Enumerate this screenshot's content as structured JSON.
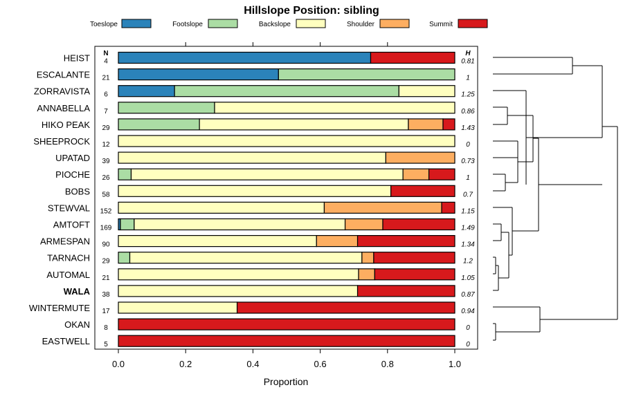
{
  "chart_data": {
    "type": "bar",
    "stacked": true,
    "orientation": "horizontal",
    "title": "Hillslope Position: sibling",
    "xlabel": "Proportion",
    "ylabel": "",
    "xlim": [
      0,
      1
    ],
    "xticks": [
      "0.0",
      "0.2",
      "0.4",
      "0.6",
      "0.8",
      "1.0"
    ],
    "n_header": "N",
    "h_header": "H",
    "legend": [
      {
        "name": "Toeslope",
        "color": "#2b83ba"
      },
      {
        "name": "Footslope",
        "color": "#abdda4"
      },
      {
        "name": "Backslope",
        "color": "#ffffbf"
      },
      {
        "name": "Shoulder",
        "color": "#fdae61"
      },
      {
        "name": "Summit",
        "color": "#d7191c"
      }
    ],
    "rows": [
      {
        "name": "HEIST",
        "bold": false,
        "n": "4",
        "h": "0.81",
        "values": [
          0.75,
          0,
          0,
          0,
          0.25
        ]
      },
      {
        "name": "ESCALANTE",
        "bold": false,
        "n": "21",
        "h": "1",
        "values": [
          0.476,
          0.524,
          0,
          0,
          0
        ]
      },
      {
        "name": "ZORRAVISTA",
        "bold": false,
        "n": "6",
        "h": "1.25",
        "values": [
          0.167,
          0.667,
          0.166,
          0,
          0
        ]
      },
      {
        "name": "ANNABELLA",
        "bold": false,
        "n": "7",
        "h": "0.86",
        "values": [
          0,
          0.286,
          0.714,
          0,
          0
        ]
      },
      {
        "name": "HIKO PEAK",
        "bold": false,
        "n": "29",
        "h": "1.43",
        "values": [
          0,
          0.241,
          0.621,
          0.103,
          0.035
        ]
      },
      {
        "name": "SHEEPROCK",
        "bold": false,
        "n": "12",
        "h": "0",
        "values": [
          0,
          0,
          1,
          0,
          0
        ]
      },
      {
        "name": "UPATAD",
        "bold": false,
        "n": "39",
        "h": "0.73",
        "values": [
          0,
          0,
          0.795,
          0.205,
          0
        ]
      },
      {
        "name": "PIOCHE",
        "bold": false,
        "n": "26",
        "h": "1",
        "values": [
          0,
          0.038,
          0.808,
          0.077,
          0.077
        ]
      },
      {
        "name": "BOBS",
        "bold": false,
        "n": "58",
        "h": "0.7",
        "values": [
          0,
          0,
          0.81,
          0,
          0.19
        ]
      },
      {
        "name": "STEWVAL",
        "bold": false,
        "n": "152",
        "h": "1.15",
        "values": [
          0,
          0,
          0.612,
          0.349,
          0.039
        ]
      },
      {
        "name": "AMTOFT",
        "bold": false,
        "n": "169",
        "h": "1.49",
        "values": [
          0.006,
          0.041,
          0.627,
          0.112,
          0.214
        ]
      },
      {
        "name": "ARMESPAN",
        "bold": false,
        "n": "90",
        "h": "1.34",
        "values": [
          0,
          0,
          0.589,
          0.122,
          0.289
        ]
      },
      {
        "name": "TARNACH",
        "bold": false,
        "n": "29",
        "h": "1.2",
        "values": [
          0,
          0.034,
          0.69,
          0.035,
          0.241
        ]
      },
      {
        "name": "AUTOMAL",
        "bold": false,
        "n": "21",
        "h": "1.05",
        "values": [
          0,
          0,
          0.714,
          0.048,
          0.238
        ]
      },
      {
        "name": "WALA",
        "bold": true,
        "n": "38",
        "h": "0.87",
        "values": [
          0,
          0,
          0.711,
          0,
          0.289
        ]
      },
      {
        "name": "WINTERMUTE",
        "bold": false,
        "n": "17",
        "h": "0.94",
        "values": [
          0,
          0,
          0.353,
          0,
          0.647
        ]
      },
      {
        "name": "OKAN",
        "bold": false,
        "n": "8",
        "h": "0",
        "values": [
          0,
          0,
          0,
          0,
          1
        ]
      },
      {
        "name": "EASTWELL",
        "bold": false,
        "n": "5",
        "h": "0",
        "values": [
          0,
          0,
          0,
          0,
          1
        ]
      }
    ]
  }
}
